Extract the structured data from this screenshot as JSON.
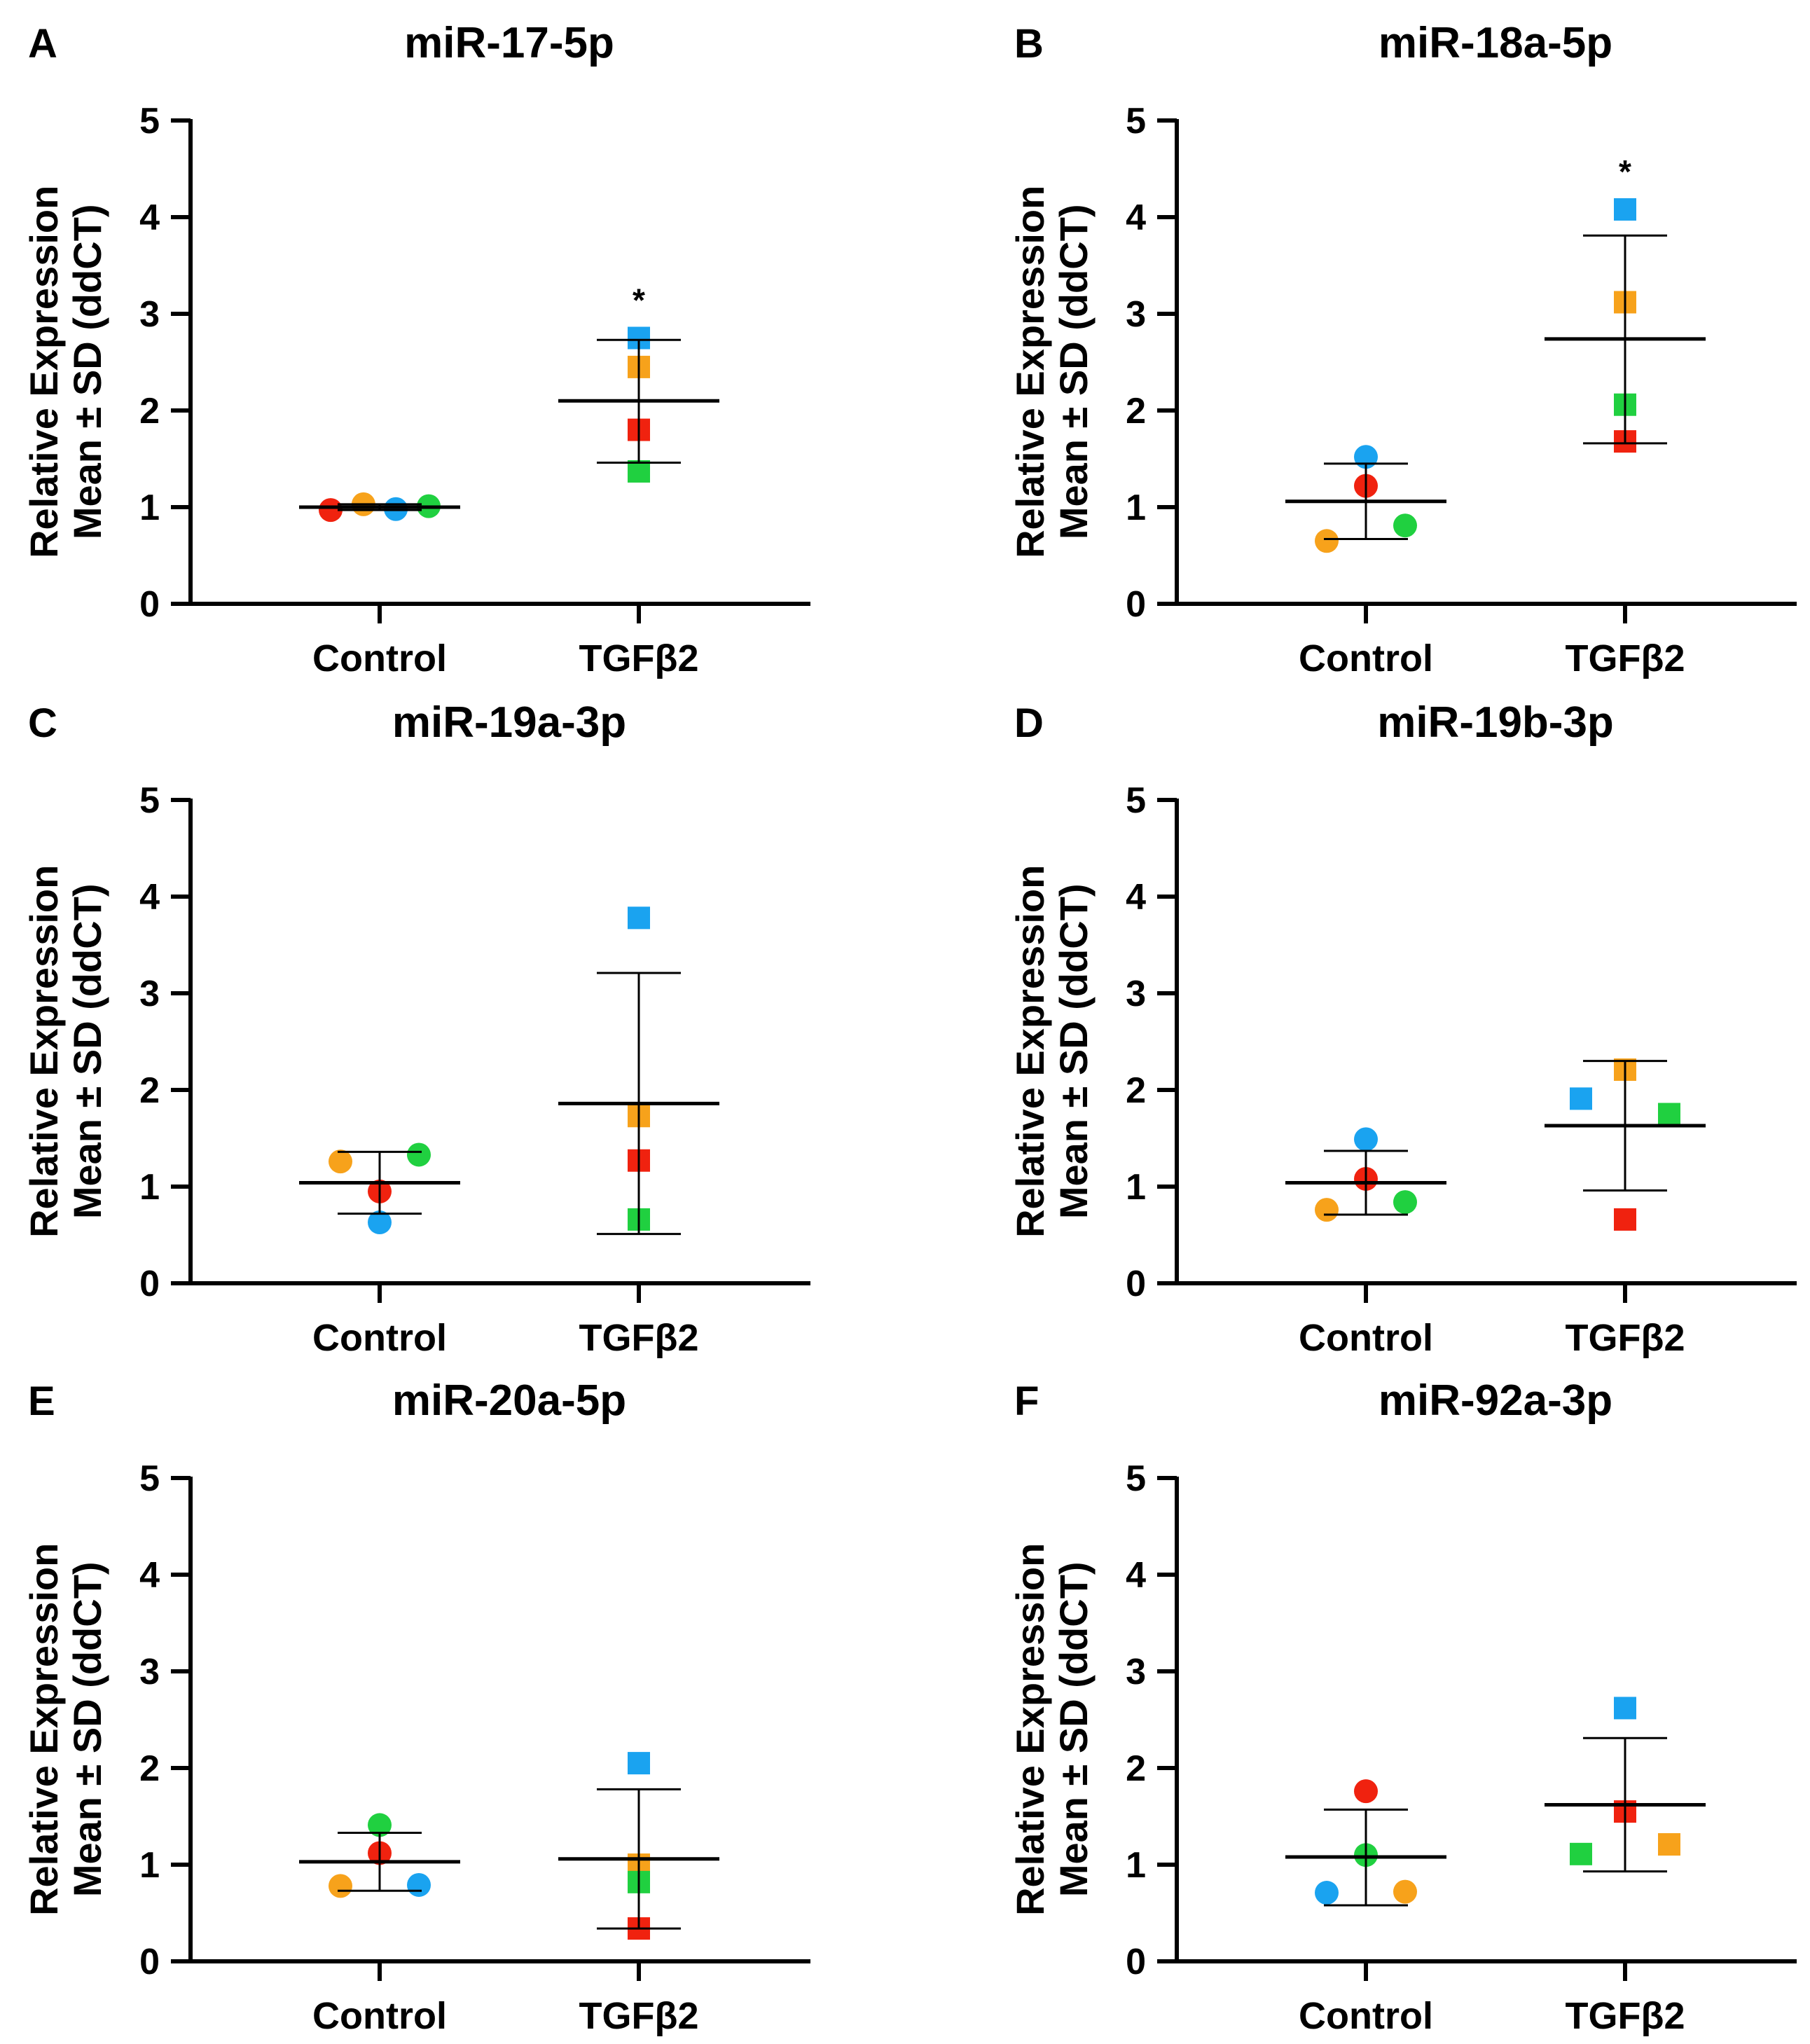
{
  "figure": {
    "ylabel_line1": "Relative Expression",
    "ylabel_line2": "Mean ± SD (ddCT)"
  },
  "colors": {
    "blue": "#1aa3f0",
    "orange": "#f7a21b",
    "red": "#f0220f",
    "green": "#20d040",
    "axis": "#000000"
  },
  "chart_data": [
    {
      "panel": "A",
      "title": "miR-17-5p",
      "type": "scatter",
      "categories": [
        "Control",
        "TGFβ2"
      ],
      "ylim": [
        0,
        5
      ],
      "yticks": [
        0,
        1,
        2,
        3,
        4,
        5
      ],
      "groups": [
        {
          "category": "Control",
          "marker": "circle",
          "mean": 1.0,
          "sd_low": 0.97,
          "sd_high": 1.03,
          "points": [
            {
              "color": "red",
              "offset": -1.0,
              "value": 0.97
            },
            {
              "color": "orange",
              "offset": -0.33,
              "value": 1.03
            },
            {
              "color": "blue",
              "offset": 0.33,
              "value": 0.98
            },
            {
              "color": "green",
              "offset": 1.0,
              "value": 1.01
            }
          ]
        },
        {
          "category": "TGFβ2",
          "marker": "square",
          "mean": 2.1,
          "sd_low": 1.46,
          "sd_high": 2.73,
          "significance": "*",
          "points": [
            {
              "color": "blue",
              "offset": 0,
              "value": 2.75
            },
            {
              "color": "orange",
              "offset": 0,
              "value": 2.45
            },
            {
              "color": "red",
              "offset": 0,
              "value": 1.8
            },
            {
              "color": "green",
              "offset": 0,
              "value": 1.37
            }
          ]
        }
      ]
    },
    {
      "panel": "B",
      "title": "miR-18a-5p",
      "type": "scatter",
      "categories": [
        "Control",
        "TGFβ2"
      ],
      "ylim": [
        0,
        5
      ],
      "yticks": [
        0,
        1,
        2,
        3,
        4,
        5
      ],
      "groups": [
        {
          "category": "Control",
          "marker": "circle",
          "mean": 1.06,
          "sd_low": 0.67,
          "sd_high": 1.45,
          "points": [
            {
              "color": "blue",
              "offset": 0,
              "value": 1.52
            },
            {
              "color": "red",
              "offset": 0,
              "value": 1.22
            },
            {
              "color": "green",
              "offset": 0.8,
              "value": 0.81
            },
            {
              "color": "orange",
              "offset": -0.8,
              "value": 0.65
            }
          ]
        },
        {
          "category": "TGFβ2",
          "marker": "square",
          "mean": 2.74,
          "sd_low": 1.66,
          "sd_high": 3.81,
          "significance": "*",
          "points": [
            {
              "color": "blue",
              "offset": 0,
              "value": 4.08
            },
            {
              "color": "orange",
              "offset": 0,
              "value": 3.12
            },
            {
              "color": "green",
              "offset": 0,
              "value": 2.06
            },
            {
              "color": "red",
              "offset": 0,
              "value": 1.68
            }
          ]
        }
      ]
    },
    {
      "panel": "C",
      "title": "miR-19a-3p",
      "type": "scatter",
      "categories": [
        "Control",
        "TGFβ2"
      ],
      "ylim": [
        0,
        5
      ],
      "yticks": [
        0,
        1,
        2,
        3,
        4,
        5
      ],
      "groups": [
        {
          "category": "Control",
          "marker": "circle",
          "mean": 1.04,
          "sd_low": 0.72,
          "sd_high": 1.36,
          "points": [
            {
              "color": "green",
              "offset": 0.8,
              "value": 1.33
            },
            {
              "color": "orange",
              "offset": -0.8,
              "value": 1.26
            },
            {
              "color": "red",
              "offset": 0,
              "value": 0.95
            },
            {
              "color": "blue",
              "offset": 0,
              "value": 0.63
            }
          ]
        },
        {
          "category": "TGFβ2",
          "marker": "square",
          "mean": 1.86,
          "sd_low": 0.51,
          "sd_high": 3.21,
          "points": [
            {
              "color": "blue",
              "offset": 0,
              "value": 3.78
            },
            {
              "color": "orange",
              "offset": 0,
              "value": 1.73
            },
            {
              "color": "red",
              "offset": 0,
              "value": 1.27
            },
            {
              "color": "green",
              "offset": 0,
              "value": 0.66
            }
          ]
        }
      ]
    },
    {
      "panel": "D",
      "title": "miR-19b-3p",
      "type": "scatter",
      "categories": [
        "Control",
        "TGFβ2"
      ],
      "ylim": [
        0,
        5
      ],
      "yticks": [
        0,
        1,
        2,
        3,
        4,
        5
      ],
      "groups": [
        {
          "category": "Control",
          "marker": "circle",
          "mean": 1.04,
          "sd_low": 0.71,
          "sd_high": 1.37,
          "points": [
            {
              "color": "blue",
              "offset": 0,
              "value": 1.49
            },
            {
              "color": "red",
              "offset": 0,
              "value": 1.08
            },
            {
              "color": "green",
              "offset": 0.8,
              "value": 0.84
            },
            {
              "color": "orange",
              "offset": -0.8,
              "value": 0.76
            }
          ]
        },
        {
          "category": "TGFβ2",
          "marker": "square",
          "mean": 1.63,
          "sd_low": 0.96,
          "sd_high": 2.3,
          "points": [
            {
              "color": "orange",
              "offset": 0,
              "value": 2.21
            },
            {
              "color": "blue",
              "offset": -0.9,
              "value": 1.91
            },
            {
              "color": "green",
              "offset": 0.9,
              "value": 1.75
            },
            {
              "color": "red",
              "offset": 0,
              "value": 0.66
            }
          ]
        }
      ]
    },
    {
      "panel": "E",
      "title": "miR-20a-5p",
      "type": "scatter",
      "categories": [
        "Control",
        "TGFβ2"
      ],
      "ylim": [
        0,
        5
      ],
      "yticks": [
        0,
        1,
        2,
        3,
        4,
        5
      ],
      "groups": [
        {
          "category": "Control",
          "marker": "circle",
          "mean": 1.03,
          "sd_low": 0.73,
          "sd_high": 1.33,
          "points": [
            {
              "color": "green",
              "offset": 0,
              "value": 1.41
            },
            {
              "color": "red",
              "offset": 0,
              "value": 1.12
            },
            {
              "color": "orange",
              "offset": -0.8,
              "value": 0.78
            },
            {
              "color": "blue",
              "offset": 0.8,
              "value": 0.79
            }
          ]
        },
        {
          "category": "TGFβ2",
          "marker": "square",
          "mean": 1.06,
          "sd_low": 0.34,
          "sd_high": 1.78,
          "points": [
            {
              "color": "blue",
              "offset": 0,
              "value": 2.05
            },
            {
              "color": "orange",
              "offset": 0,
              "value": 1.0
            },
            {
              "color": "green",
              "offset": 0,
              "value": 0.82
            },
            {
              "color": "red",
              "offset": 0,
              "value": 0.34
            }
          ]
        }
      ]
    },
    {
      "panel": "F",
      "title": "miR-92a-3p",
      "type": "scatter",
      "categories": [
        "Control",
        "TGFβ2"
      ],
      "ylim": [
        0,
        5
      ],
      "yticks": [
        0,
        1,
        2,
        3,
        4,
        5
      ],
      "groups": [
        {
          "category": "Control",
          "marker": "circle",
          "mean": 1.08,
          "sd_low": 0.58,
          "sd_high": 1.57,
          "points": [
            {
              "color": "red",
              "offset": 0,
              "value": 1.76
            },
            {
              "color": "green",
              "offset": 0,
              "value": 1.1
            },
            {
              "color": "blue",
              "offset": -0.8,
              "value": 0.71
            },
            {
              "color": "orange",
              "offset": 0.8,
              "value": 0.72
            }
          ]
        },
        {
          "category": "TGFβ2",
          "marker": "square",
          "mean": 1.62,
          "sd_low": 0.93,
          "sd_high": 2.31,
          "points": [
            {
              "color": "blue",
              "offset": 0,
              "value": 2.62
            },
            {
              "color": "red",
              "offset": 0,
              "value": 1.55
            },
            {
              "color": "orange",
              "offset": 0.9,
              "value": 1.21
            },
            {
              "color": "green",
              "offset": -0.9,
              "value": 1.11
            }
          ]
        }
      ]
    }
  ]
}
